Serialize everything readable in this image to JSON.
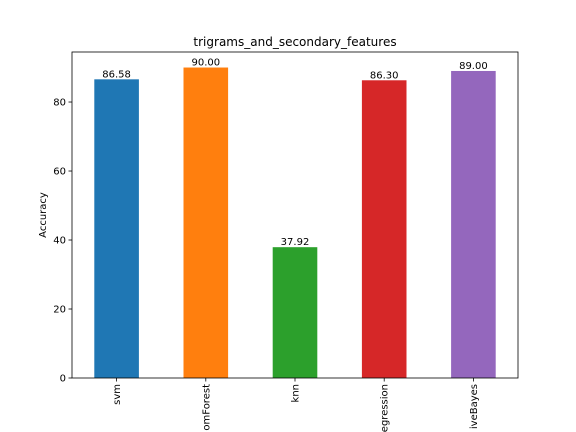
{
  "chart_data": {
    "type": "bar",
    "title": "trigrams_and_secondary_features",
    "xlabel": "",
    "ylabel": "Accuracy",
    "categories": [
      "svm",
      "omForest",
      "knn",
      "egression",
      "iveBayes"
    ],
    "values": [
      86.58,
      90.0,
      37.92,
      86.3,
      89.0
    ],
    "value_labels": [
      "86.58",
      "90.00",
      "37.92",
      "86.30",
      "89.00"
    ],
    "colors": [
      "#1f77b4",
      "#ff7f0e",
      "#2ca02c",
      "#d62728",
      "#9467bd"
    ],
    "ylim": [
      0,
      94.5
    ],
    "yticks": [
      0,
      20,
      40,
      60,
      80
    ],
    "grid": false,
    "legend": "none"
  }
}
